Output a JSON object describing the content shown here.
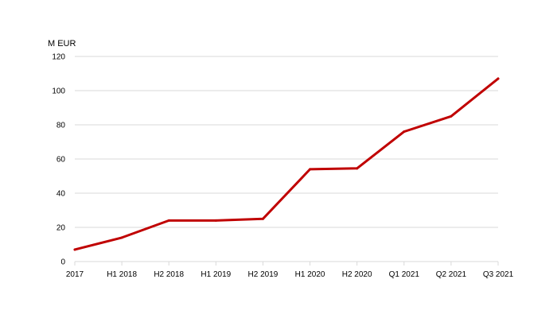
{
  "chart_data": {
    "type": "line",
    "title": "",
    "ylabel": "M EUR",
    "xlabel": "",
    "categories": [
      "2017",
      "H1 2018",
      "H2 2018",
      "H1 2019",
      "H2 2019",
      "H1 2020",
      "H2 2020",
      "Q1 2021",
      "Q2 2021",
      "Q3 2021"
    ],
    "series": [
      {
        "values": [
          7,
          14,
          24,
          24,
          25,
          54,
          54.5,
          76,
          85,
          107
        ],
        "color": "#c00000"
      }
    ],
    "ylim": [
      0,
      120
    ],
    "yticks": [
      0,
      20,
      40,
      60,
      80,
      100,
      120
    ],
    "grid": true,
    "legend": "none"
  }
}
